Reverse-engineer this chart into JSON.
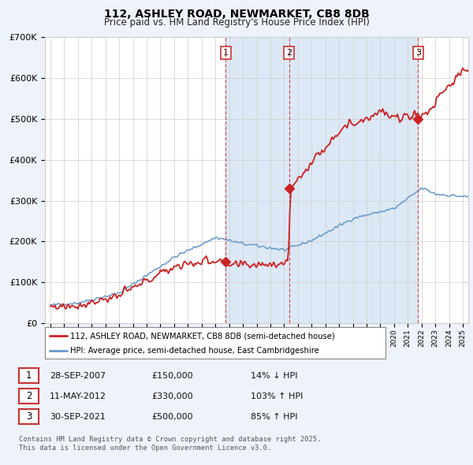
{
  "title": "112, ASHLEY ROAD, NEWMARKET, CB8 8DB",
  "subtitle": "Price paid vs. HM Land Registry's House Price Index (HPI)",
  "ylim": [
    0,
    700000
  ],
  "yticks": [
    0,
    100000,
    200000,
    300000,
    400000,
    500000,
    600000,
    700000
  ],
  "ytick_labels": [
    "£0",
    "£100K",
    "£200K",
    "£300K",
    "£400K",
    "£500K",
    "£600K",
    "£700K"
  ],
  "hpi_color": "#6699cc",
  "price_color": "#cc2222",
  "background_color": "#eef2fa",
  "plot_bg_color": "#ffffff",
  "shade_color": "#dce8f5",
  "legend_label_price": "112, ASHLEY ROAD, NEWMARKET, CB8 8DB (semi-detached house)",
  "legend_label_hpi": "HPI: Average price, semi-detached house, East Cambridgeshire",
  "transaction1_date": "28-SEP-2007",
  "transaction1_price": "£150,000",
  "transaction1_note": "14% ↓ HPI",
  "transaction2_date": "11-MAY-2012",
  "transaction2_price": "£330,000",
  "transaction2_note": "103% ↑ HPI",
  "transaction3_date": "30-SEP-2021",
  "transaction3_price": "£500,000",
  "transaction3_note": "85% ↑ HPI",
  "footer": "Contains HM Land Registry data © Crown copyright and database right 2025.\nThis data is licensed under the Open Government Licence v3.0.",
  "vline1_x": 2007.75,
  "vline2_x": 2012.37,
  "vline3_x": 2021.75,
  "sale1_x": 2007.75,
  "sale1_y": 150000,
  "sale2_x": 2012.37,
  "sale2_y": 330000,
  "sale3_x": 2021.75,
  "sale3_y": 500000,
  "xlim_left": 1994.6,
  "xlim_right": 2025.4
}
